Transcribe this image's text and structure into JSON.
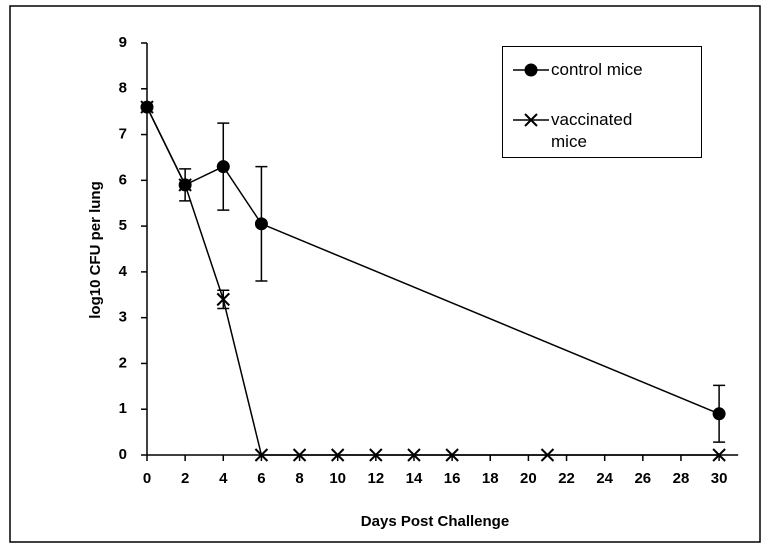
{
  "chart_data": {
    "type": "line",
    "xlabel": "Days Post Challenge",
    "ylabel": "log10 CFU per lung",
    "series": [
      {
        "name": "control mice",
        "color": "#000000",
        "marker": "circle",
        "x": [
          0,
          2,
          4,
          6,
          30
        ],
        "values": [
          7.6,
          5.9,
          6.3,
          5.05,
          0.9
        ],
        "errors": [
          null,
          0.35,
          0.95,
          1.25,
          0.62
        ]
      },
      {
        "name": "vaccinated mice",
        "color": "#000000",
        "marker": "x",
        "x": [
          0,
          2,
          4,
          6,
          8,
          10,
          12,
          14,
          16,
          21,
          30
        ],
        "values": [
          7.6,
          5.9,
          3.4,
          0,
          0,
          0,
          0,
          0,
          0,
          0,
          0
        ],
        "errors": [
          null,
          null,
          0.2,
          null,
          null,
          null,
          null,
          null,
          null,
          null,
          null
        ]
      }
    ],
    "xlim": [
      0,
      31
    ],
    "xticks": [
      0,
      2,
      4,
      6,
      8,
      10,
      12,
      14,
      16,
      18,
      20,
      22,
      24,
      26,
      28,
      30
    ],
    "ylim": [
      0,
      9
    ],
    "yticks": [
      0,
      1,
      2,
      3,
      4,
      5,
      6,
      7,
      8,
      9
    ],
    "legend": "upper right",
    "grid": false
  }
}
